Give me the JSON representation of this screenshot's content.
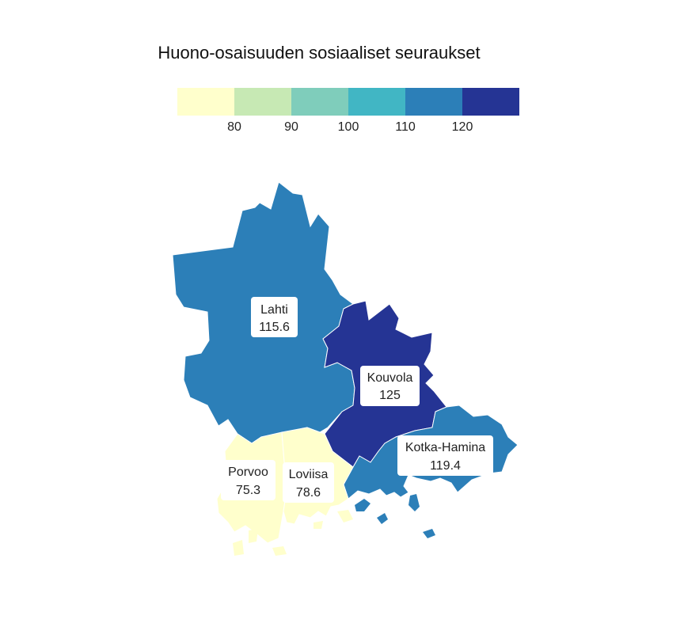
{
  "title": "Huono-osaisuuden sosiaaliset seuraukset",
  "legend": {
    "colors": [
      "#ffffcc",
      "#c7e9b4",
      "#7fcdbb",
      "#41b6c4",
      "#2c7fb8",
      "#253494"
    ],
    "ticks": [
      "80",
      "90",
      "100",
      "110",
      "120"
    ]
  },
  "regions": [
    {
      "id": "lahti",
      "name": "Lahti",
      "value": "115.6",
      "color": "#2c7fb8"
    },
    {
      "id": "kouvola",
      "name": "Kouvola",
      "value": "125",
      "color": "#253494"
    },
    {
      "id": "kotka-hamina",
      "name": "Kotka-Hamina",
      "value": "119.4",
      "color": "#2c7fb8"
    },
    {
      "id": "porvoo",
      "name": "Porvoo",
      "value": "75.3",
      "color": "#ffffcc"
    },
    {
      "id": "loviisa",
      "name": "Loviisa",
      "value": "78.6",
      "color": "#ffffcc"
    }
  ]
}
